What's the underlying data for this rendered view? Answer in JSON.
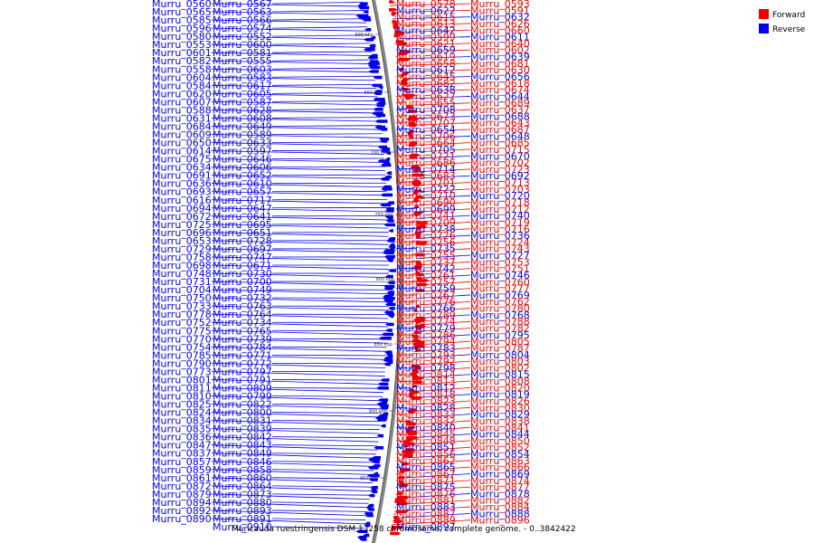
{
  "caption": "Muricauda ruestringensis DSM 13258 chromosome, complete genome. - 0..3842422",
  "legend": [
    {
      "label": "Forward",
      "color": "#ee0000"
    },
    {
      "label": "Reverse",
      "color": "#0000ee"
    }
  ],
  "colors": {
    "forward": "#ee0000",
    "reverse": "#0000ee",
    "backbone": "#888888"
  },
  "ticks": [
    "600 kbp",
    "650 kbp",
    "700 kbp",
    "750 kbp",
    "800 kbp",
    "850 kbp",
    "900 kbp",
    "950 kbp"
  ],
  "left_labels": [
    "Murru_0567",
    "Murru_0560",
    "Murru_0563",
    "Murru_0565",
    "Murru_0566",
    "Murru_0585",
    "Murru_0574",
    "Murru_0596",
    "Murru_0552",
    "Murru_0580",
    "Murru_0600",
    "Murru_0553",
    "Murru_0581",
    "Murru_0601",
    "Murru_0555",
    "Murru_0582",
    "Murru_0603",
    "Murru_0558",
    "Murru_0583",
    "Murru_0604",
    "Murru_0617",
    "Murru_0584",
    "Murru_0605",
    "Murru_0620",
    "Murru_0587",
    "Murru_0607",
    "Murru_0628",
    "Murru_0588",
    "Murru_0608",
    "Murru_0631",
    "Murru_0649",
    "Murru_0684",
    "Murru_0589",
    "Murru_0609",
    "Murru_0633",
    "Murru_0650",
    "Murru_0597",
    "Murru_0614",
    "Murru_0646",
    "Murru_0675",
    "Murru_0606",
    "Murru_0634",
    "Murru_0652",
    "Murru_0691",
    "Murru_0610",
    "Murru_0636",
    "Murru_0657",
    "Murru_0693",
    "Murru_0717",
    "Murru_0616",
    "Murru_0647",
    "Murru_0694",
    "Murru_0641",
    "Murru_0672",
    "Murru_0695",
    "Murru_0725",
    "Murru_0651",
    "Murru_0696",
    "Murru_0728",
    "Murru_0653",
    "Murru_0697",
    "Murru_0729",
    "Murru_0747",
    "Murru_0758",
    "Murru_0671",
    "Murru_0698",
    "Murru_0730",
    "Murru_0748",
    "Murru_0700",
    "Murru_0731",
    "Murru_0749",
    "Murru_0704",
    "Murru_0732",
    "Murru_0750",
    "Murru_0763",
    "Murru_0733",
    "Murru_0764",
    "Murru_0778",
    "Murru_0734",
    "Murru_0752",
    "Murru_0765",
    "Murru_0775",
    "Murru_0739",
    "Murru_0770",
    "Murru_0784",
    "Murru_0754",
    "Murru_0771",
    "Murru_0785",
    "Murru_0772",
    "Murru_0790",
    "Murru_0797",
    "Murru_0773",
    "Murru_0791",
    "Murru_0801",
    "Murru_0809",
    "Murru_0811",
    "Murru_0799",
    "Murru_0810",
    "Murru_0822",
    "Murru_0825",
    "Murru_0800",
    "Murru_0824",
    "Murru_0831",
    "Murru_0834",
    "Murru_0839",
    "Murru_0835",
    "Murru_0842",
    "Murru_0836",
    "Murru_0843",
    "Murru_0847",
    "Murru_0849",
    "Murru_0837",
    "Murru_0846",
    "Murru_0857",
    "Murru_0858",
    "Murru_0859",
    "Murru_0860",
    "Murru_0861",
    "Murru_0864",
    "Murru_0872",
    "Murru_0873",
    "Murru_0879",
    "Murru_0880",
    "Murru_0894",
    "Murru_0893",
    "Murru_0892",
    "Murru_0891",
    "Murru_0890",
    "Murru_0910"
  ],
  "right_labels": [
    "Murru_0578",
    "Murru_0593",
    "Murru_0622",
    "Murru_0591",
    "Murru_0615",
    "Murru_0632",
    "Murru_0613",
    "Murru_0626",
    "Murru_0642",
    "Murru_0660",
    "Murru_0599",
    "Murru_0611",
    "Murru_0621",
    "Murru_0640",
    "Murru_0659",
    "Murru_0602",
    "Murru_0619",
    "Murru_0639",
    "Murru_0658",
    "Murru_0681",
    "Murru_0612",
    "Murru_0630",
    "Murru_0645",
    "Murru_0656",
    "Murru_0682",
    "Murru_0618",
    "Murru_0638",
    "Murru_0674",
    "Murru_0627",
    "Murru_0644",
    "Murru_0655",
    "Murru_0689",
    "Murru_0708",
    "Murru_0637",
    "Murru_0673",
    "Murru_0688",
    "Murru_0707",
    "Murru_0643",
    "Murru_0654",
    "Murru_0687",
    "Murru_0706",
    "Murru_0648",
    "Murru_0664",
    "Murru_0685",
    "Murru_0705",
    "Murru_0715",
    "Murru_0721",
    "Murru_0670",
    "Murru_0686",
    "Murru_0702",
    "Murru_0714",
    "Murru_0723",
    "Murru_0683",
    "Murru_0692",
    "Murru_0701",
    "Murru_0713",
    "Murru_0722",
    "Murru_0703",
    "Murru_0710",
    "Murru_0720",
    "Murru_0690",
    "Murru_0718",
    "Murru_0699",
    "Murru_0712",
    "Murru_0741",
    "Murru_0740",
    "Murru_0709",
    "Murru_0719",
    "Murru_0738",
    "Murru_0716",
    "Murru_0726",
    "Murru_0736",
    "Murru_0756",
    "Murru_0724",
    "Murru_0735",
    "Murru_0743",
    "Murru_0755",
    "Murru_0727",
    "Murru_0737",
    "Murru_0753",
    "Murru_0742",
    "Murru_0751",
    "Murru_0761",
    "Murru_0746",
    "Murru_0757",
    "Murru_0760",
    "Murru_0759",
    "Murru_0777",
    "Murru_0767",
    "Murru_0769",
    "Murru_0776",
    "Murru_0762",
    "Murru_0766",
    "Murru_0780",
    "Murru_0789",
    "Murru_0768",
    "Murru_0774",
    "Murru_0788",
    "Murru_0779",
    "Murru_0782",
    "Murru_0786",
    "Murru_0795",
    "Murru_0794",
    "Murru_0805",
    "Murru_0783",
    "Murru_0787",
    "Murru_0793",
    "Murru_0804",
    "Murru_0792",
    "Murru_0803",
    "Murru_0798",
    "Murru_0802",
    "Murru_0814",
    "Murru_0815",
    "Murru_0813",
    "Murru_0808",
    "Murru_0812",
    "Murru_0820",
    "Murru_0818",
    "Murru_0819",
    "Murru_0823",
    "Murru_0826",
    "Murru_0828",
    "Murru_0830",
    "Murru_0833",
    "Murru_0829",
    "Murru_0832",
    "Murru_0838",
    "Murru_0840",
    "Murru_0841",
    "Murru_0845",
    "Murru_0844",
    "Murru_0848",
    "Murru_0850",
    "Murru_0851",
    "Murru_0852",
    "Murru_0856",
    "Murru_0854",
    "Murru_0862",
    "Murru_0863",
    "Murru_0865",
    "Murru_0866",
    "Murru_0867",
    "Murru_0869",
    "Murru_0871",
    "Murru_0874",
    "Murru_0875",
    "Murru_0877",
    "Murru_0876",
    "Murru_0878",
    "Murru_0881",
    "Murru_0882",
    "Murru_0883",
    "Murru_0884",
    "Murru_0887",
    "Murru_0888",
    "Murru_0889",
    "Murru_0896",
    "Murru_0897"
  ]
}
